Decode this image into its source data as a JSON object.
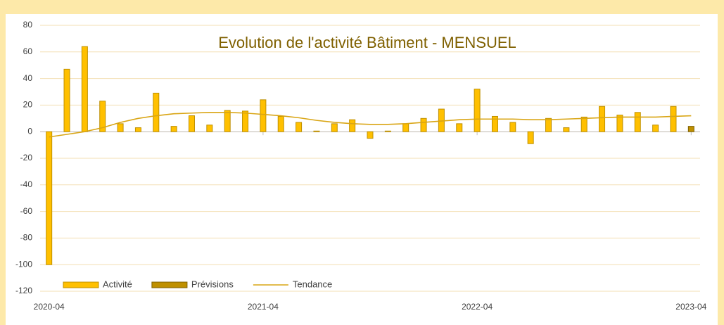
{
  "chart_data": {
    "type": "bar",
    "title": "Evolution de l'activité Bâtiment - MENSUEL",
    "categories": [
      "2020-04",
      null,
      null,
      null,
      null,
      null,
      null,
      null,
      null,
      null,
      null,
      null,
      "2021-04",
      null,
      null,
      null,
      null,
      null,
      null,
      null,
      null,
      null,
      null,
      null,
      "2022-04",
      null,
      null,
      null,
      null,
      null,
      null,
      null,
      null,
      null,
      null,
      null,
      "2023-04"
    ],
    "series": [
      {
        "name": "Activité",
        "kind": "bar",
        "color": "#ffc000",
        "edge": "#bf9000",
        "values": [
          -100,
          47,
          64,
          23,
          6,
          3,
          29,
          4,
          12,
          5,
          16,
          15.5,
          24,
          11.5,
          7,
          0.5,
          6,
          9,
          -5,
          0.5,
          6,
          10,
          17,
          6,
          32,
          11.5,
          7,
          -9,
          10,
          3,
          11,
          19,
          12.5,
          14.5,
          5,
          19,
          null
        ]
      },
      {
        "name": "Prévisions",
        "kind": "bar",
        "color": "#bf9000",
        "edge": "#7f6000",
        "values": [
          null,
          null,
          null,
          null,
          null,
          null,
          null,
          null,
          null,
          null,
          null,
          null,
          null,
          null,
          null,
          null,
          null,
          null,
          null,
          null,
          null,
          null,
          null,
          null,
          null,
          null,
          null,
          null,
          null,
          null,
          null,
          null,
          null,
          null,
          null,
          null,
          4
        ]
      },
      {
        "name": "Tendance",
        "kind": "line",
        "color": "#d9a514",
        "values": [
          -4,
          -2,
          0,
          3,
          7,
          10,
          12,
          13.5,
          14,
          14.5,
          14.5,
          14,
          13,
          12,
          10.5,
          8.5,
          7,
          6,
          5.5,
          5.5,
          6,
          7,
          8,
          9,
          9.5,
          9.5,
          9.5,
          9,
          9,
          9.5,
          10,
          10.5,
          11,
          11,
          11,
          11.5,
          12
        ]
      }
    ],
    "ylim": [
      -120,
      80
    ],
    "yticks": [
      -120,
      -100,
      -80,
      -60,
      -40,
      -20,
      0,
      20,
      40,
      60,
      80
    ],
    "grid": true,
    "legend": "bottom-left"
  }
}
